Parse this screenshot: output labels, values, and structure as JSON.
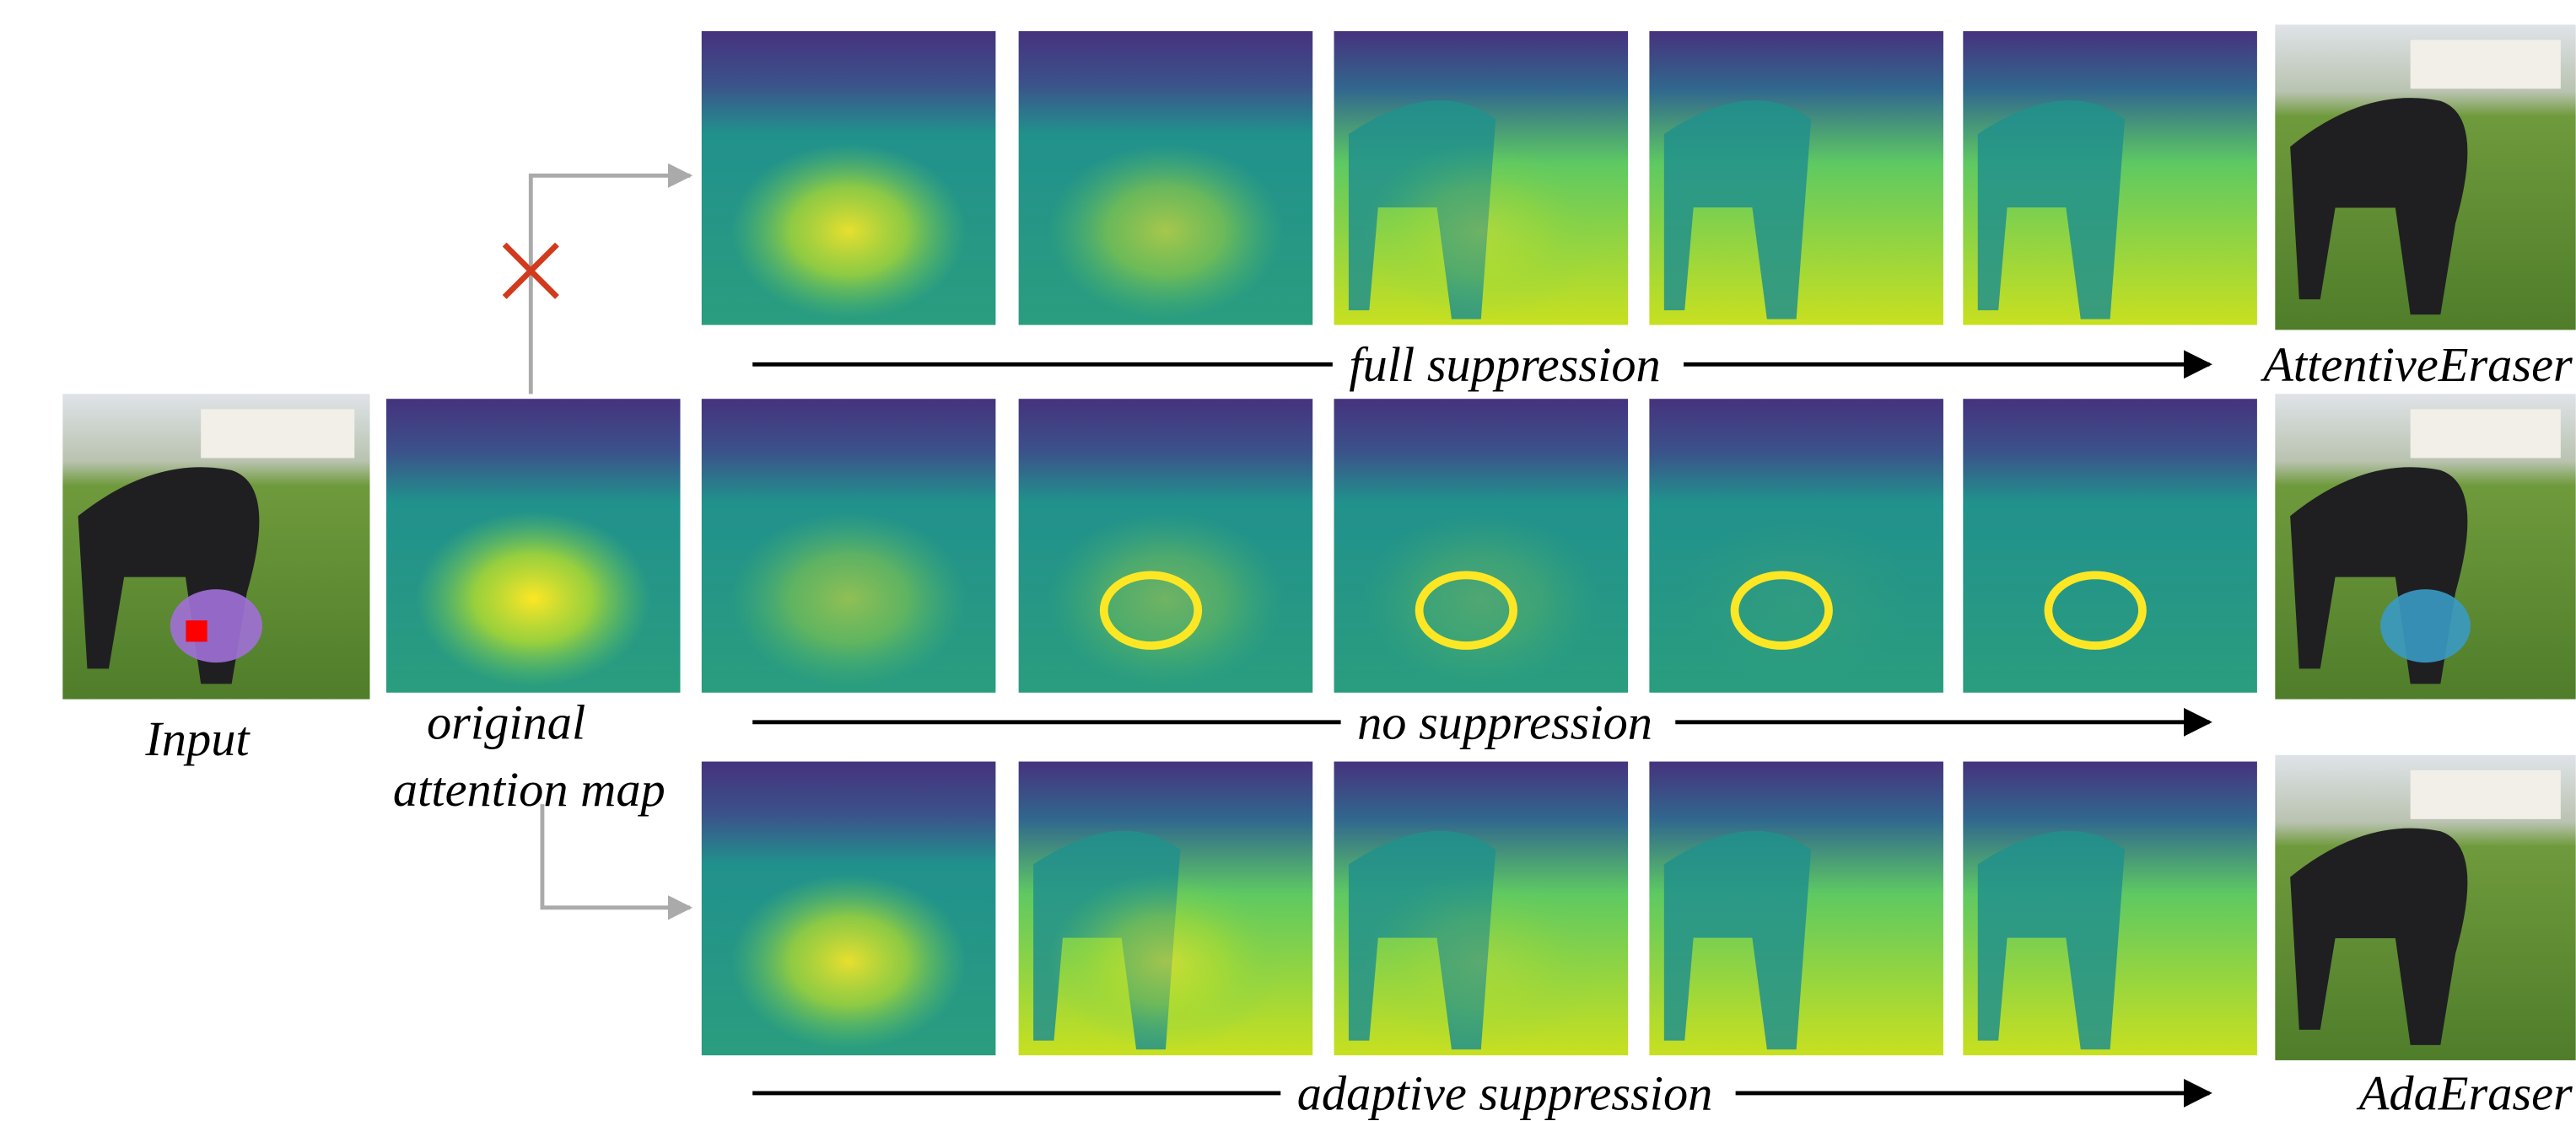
{
  "input_label": "Input",
  "attention_label": [
    "original",
    "attention map"
  ],
  "rows": [
    {
      "caption": "full suppression",
      "output_label": "AttentiveEraser"
    },
    {
      "caption": "no suppression"
    },
    {
      "caption": "adaptive suppression",
      "output_label": "AdaEraser"
    }
  ]
}
